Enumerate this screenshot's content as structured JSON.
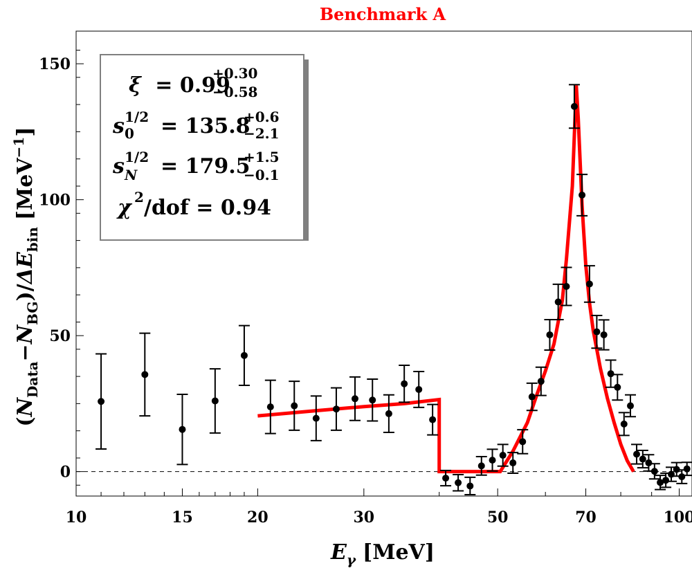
{
  "chart_data": {
    "type": "scatter",
    "title": "Benchmark A",
    "xlabel": {
      "main": "E",
      "sub": "γ",
      "units": "[MeV]"
    },
    "ylabel": {
      "open": "(",
      "n_data": "N",
      "n_data_sub": "Data",
      "minus": "−",
      "n_bg": "N",
      "n_bg_sub": "BG",
      "close": ")/",
      "delta": "ΔE",
      "delta_sub": "bin",
      "units": "[MeV",
      "units_exp": "−1",
      "units_close": "]"
    },
    "x_scale": "log",
    "xlim": [
      10,
      105
    ],
    "ylim": [
      -9,
      162
    ],
    "x_ticks": [
      10,
      15,
      20,
      30,
      50,
      70,
      100
    ],
    "x_tick_labels": [
      "10",
      "15",
      "20",
      "30",
      "50",
      "70",
      "100"
    ],
    "x_minor_ticks": [
      11,
      12,
      13,
      14,
      16,
      17,
      18,
      19,
      40,
      60,
      80,
      90
    ],
    "y_ticks": [
      0,
      50,
      100,
      150
    ],
    "y_tick_labels": [
      "0",
      "50",
      "100",
      "150"
    ],
    "reference_line": 0,
    "fit_color": "#ff0000",
    "legend_box": {
      "xi": {
        "symbol": "ξ",
        "value": "= 0.99",
        "sup": "+0.30",
        "sub": "−0.58"
      },
      "s0": {
        "symbol": "s",
        "pow": "1/2",
        "index": "0",
        "value": "= 135.8",
        "sup": "+0.6",
        "sub": "−2.1"
      },
      "sN": {
        "symbol": "s",
        "pow": "1/2",
        "index": "N",
        "value": "= 179.5",
        "sup": "+1.5",
        "sub": "−0.1"
      },
      "chi": {
        "symbol": "χ",
        "pow": "2",
        "value": "/dof = 0.94"
      }
    },
    "series": [
      {
        "name": "data",
        "x": [
          11.0,
          13.0,
          15.0,
          17.0,
          19.0,
          21.0,
          23.0,
          25.0,
          27.0,
          29.0,
          31.0,
          33.0,
          35.0,
          37.0,
          39.0,
          41.0,
          43.0,
          45.0,
          47.0,
          49.0,
          51.0,
          53.0,
          55.0,
          57.0,
          59.0,
          61.0,
          63.0,
          65.0,
          67.0,
          69.0,
          71.0,
          73.0,
          75.0,
          77.0,
          79.0,
          81.0,
          83.0,
          85.0,
          87.0,
          89.0,
          91.0,
          93.0,
          95.0,
          97.0,
          99.0,
          101.0,
          103.0
        ],
        "y": [
          25.8,
          35.7,
          15.5,
          26.0,
          42.7,
          23.8,
          24.2,
          19.6,
          23.0,
          26.8,
          26.3,
          21.3,
          32.3,
          30.2,
          19.1,
          -2.4,
          -4.1,
          -5.3,
          2.1,
          4.2,
          6.0,
          3.2,
          11.0,
          27.5,
          33.2,
          50.3,
          62.4,
          68.1,
          134.3,
          101.7,
          69.0,
          51.4,
          50.3,
          36.0,
          31.0,
          17.5,
          24.2,
          6.4,
          4.6,
          3.2,
          0.1,
          -4.0,
          -3.2,
          -1.0,
          0.8,
          -1.9,
          1.0
        ],
        "err": [
          17.5,
          15.2,
          12.9,
          11.8,
          11.0,
          9.8,
          9.0,
          8.2,
          7.8,
          8.0,
          7.7,
          6.9,
          6.8,
          6.6,
          5.6,
          2.8,
          3.0,
          3.2,
          3.4,
          4.0,
          4.0,
          3.8,
          4.4,
          5.0,
          5.2,
          5.6,
          6.5,
          7.0,
          8.0,
          7.6,
          6.7,
          6.0,
          5.5,
          5.0,
          4.7,
          4.2,
          4.0,
          3.6,
          3.2,
          3.0,
          2.8,
          2.6,
          2.6,
          2.6,
          2.5,
          2.5,
          2.4
        ]
      },
      {
        "name": "fit",
        "x": [
          20.0,
          25.0,
          30.0,
          35.0,
          40.0,
          40.0,
          44.0,
          44.0,
          50.5,
          53.0,
          56.0,
          58.0,
          60.0,
          62.0,
          64.0,
          65.0,
          66.5,
          67.5,
          68.0,
          69.0,
          70.0,
          71.0,
          72.0,
          74.0,
          76.0,
          78.0,
          80.0,
          82.0,
          84.0
        ],
        "y": [
          20.5,
          22.4,
          23.9,
          25.0,
          26.5,
          0.0,
          0.0,
          0.0,
          0.0,
          7.5,
          18.0,
          28.0,
          37.0,
          47.0,
          63.0,
          78.0,
          105.0,
          142.0,
          130.0,
          98.0,
          76.0,
          62.0,
          52.0,
          38.0,
          27.0,
          18.0,
          10.0,
          4.0,
          0.0
        ]
      }
    ]
  }
}
